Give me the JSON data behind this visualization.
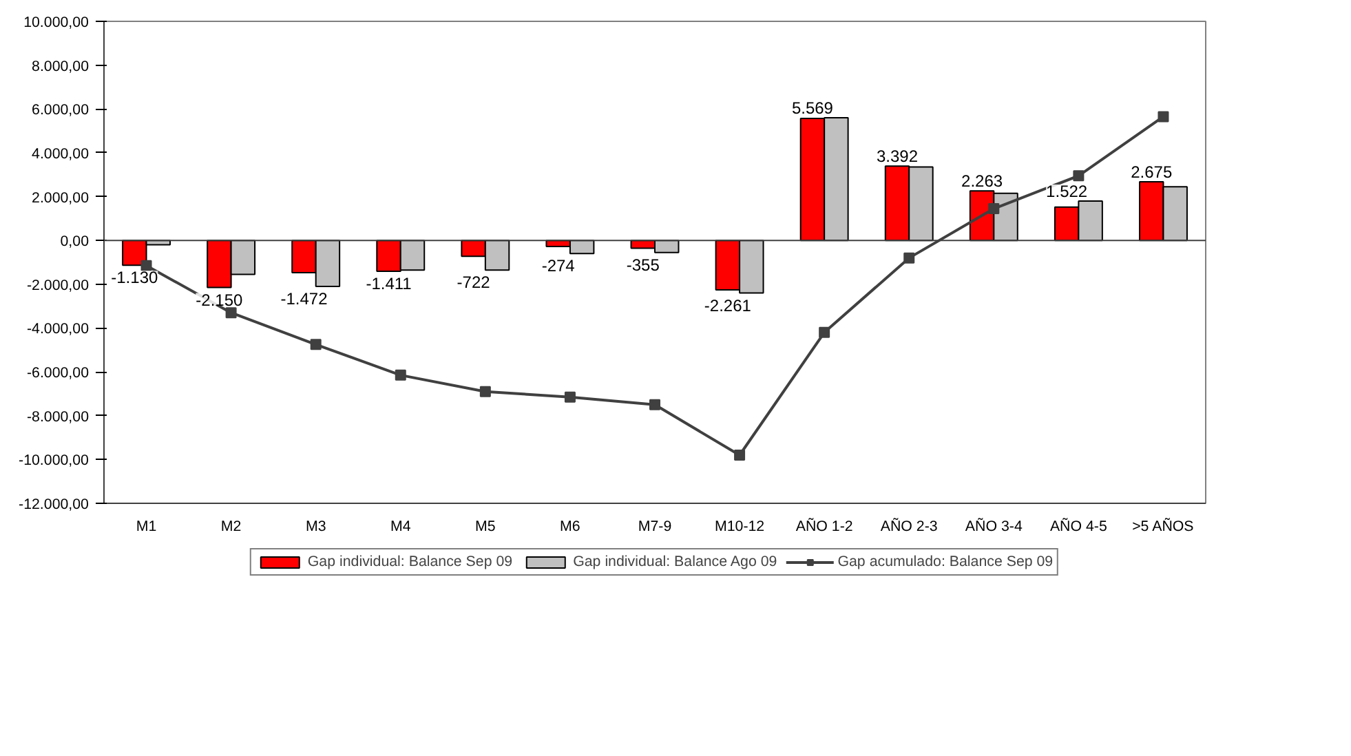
{
  "chart_data": {
    "type": "bar",
    "categories": [
      "M1",
      "M2",
      "M3",
      "M4",
      "M5",
      "M6",
      "M7-9",
      "M10-12",
      "AÑO 1-2",
      "AÑO 2-3",
      "AÑO 3-4",
      "AÑO 4-5",
      ">5 AÑOS"
    ],
    "series": [
      {
        "name": "Gap individual: Balance Sep 09",
        "color": "#ff0000",
        "values": [
          -1130,
          -2150,
          -1472,
          -1411,
          -722,
          -274,
          -355,
          -2261,
          5569,
          3392,
          2263,
          1522,
          2675
        ],
        "value_labels": [
          "-1.130",
          "-2.150",
          "-1.472",
          "-1.411",
          "-722",
          "-274",
          "-355",
          "-2.261",
          "5.569",
          "3.392",
          "2.263",
          "1.522",
          "2.675"
        ]
      },
      {
        "name": "Gap individual: Balance Ago 09",
        "color": "#c0c0c0",
        "values": [
          -200,
          -1550,
          -2100,
          -1350,
          -1350,
          -600,
          -550,
          -2400,
          5600,
          3350,
          2150,
          1800,
          2450
        ]
      },
      {
        "name": "Gap acumulado: Balance Sep 09",
        "type": "line",
        "color": "#404040",
        "marker": "square",
        "line_style": "solid",
        "values": [
          -1150,
          -3300,
          -4750,
          -6150,
          -6900,
          -7150,
          -7500,
          -9800,
          -4200,
          -800,
          1450,
          2950,
          5650
        ]
      }
    ],
    "ylim": [
      -12000,
      10000
    ],
    "yticks": [
      {
        "value": -12000,
        "label": "-12.000,00"
      },
      {
        "value": -10000,
        "label": "-10.000,00"
      },
      {
        "value": -8000,
        "label": "-8.000,00"
      },
      {
        "value": -6000,
        "label": "-6.000,00"
      },
      {
        "value": -4000,
        "label": "-4.000,00"
      },
      {
        "value": -2000,
        "label": "-2.000,00"
      },
      {
        "value": 0,
        "label": "0,00"
      },
      {
        "value": 2000,
        "label": "2.000,00"
      },
      {
        "value": 4000,
        "label": "4.000,00"
      },
      {
        "value": 6000,
        "label": "6.000,00"
      },
      {
        "value": 8000,
        "label": "8.000,00"
      },
      {
        "value": 10000,
        "label": "10.000,00"
      }
    ],
    "legend": "bottom"
  }
}
